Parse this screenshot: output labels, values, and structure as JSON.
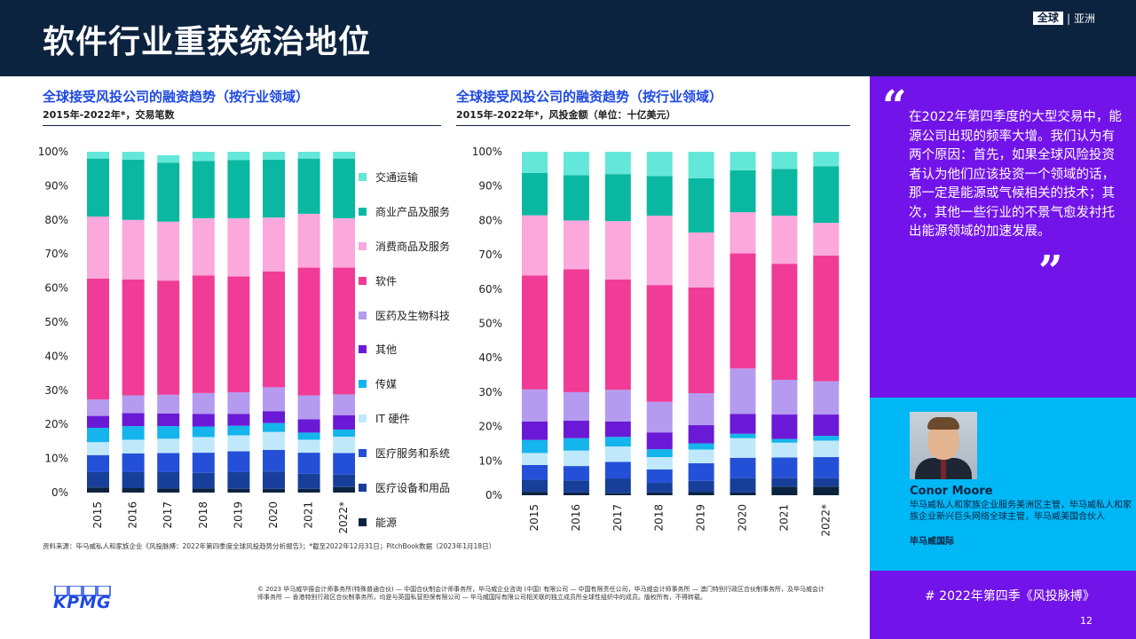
{
  "header": {
    "title": "软件行业重获统治地位",
    "brand_box": "全球",
    "brand_region": "亚洲"
  },
  "charts": {
    "left_title": "全球接受风投公司的融资趋势（按行业领域）",
    "left_subtitle": "2015年-2022年*，交易笔数",
    "right_title": "全球接受风投公司的融资趋势（按行业领域）",
    "right_subtitle": "2015年-2022年*，风投金额（单位：十亿美元）"
  },
  "legend": [
    {
      "label": "交通运输",
      "color": "#63e7d9"
    },
    {
      "label": "商业产品及服务",
      "color": "#0ab8a2"
    },
    {
      "label": "消费商品及服务",
      "color": "#fba8dc"
    },
    {
      "label": "软件",
      "color": "#f03c96"
    },
    {
      "label": "医药及生物科技",
      "color": "#b49bef"
    },
    {
      "label": "其他",
      "color": "#6a1ad6"
    },
    {
      "label": "传媒",
      "color": "#14b4ec"
    },
    {
      "label": "IT 硬件",
      "color": "#bfe9fa"
    },
    {
      "label": "医疗服务和系统",
      "color": "#2450d8"
    },
    {
      "label": "医疗设备和用品",
      "color": "#173f9a"
    },
    {
      "label": "能源",
      "color": "#0c2340"
    }
  ],
  "chart_data": [
    {
      "type": "bar",
      "stacked": true,
      "title": "全球接受风投公司的融资趋势（按行业领域）",
      "subtitle": "2015年-2022年*，交易笔数",
      "categories": [
        "2015",
        "2016",
        "2017",
        "2018",
        "2019",
        "2020",
        "2021",
        "2022*"
      ],
      "ylim": [
        0,
        100
      ],
      "y_ticks": [
        "0%",
        "10%",
        "20%",
        "30%",
        "40%",
        "50%",
        "60%",
        "70%",
        "80%",
        "90%",
        "100%"
      ],
      "legend_position": "right",
      "series": [
        {
          "name": "能源",
          "values": [
            1.5,
            1.3,
            1.2,
            1.2,
            1.1,
            1.1,
            1.1,
            1.6
          ]
        },
        {
          "name": "医疗设备和用品",
          "values": [
            4.5,
            4.7,
            4.8,
            4.6,
            4.9,
            5.1,
            4.4,
            3.7
          ]
        },
        {
          "name": "医疗服务和系统",
          "values": [
            5.0,
            5.5,
            5.6,
            5.9,
            6.1,
            6.3,
            6.2,
            6.3
          ]
        },
        {
          "name": "IT 硬件",
          "values": [
            3.8,
            4.0,
            4.2,
            4.6,
            4.7,
            5.3,
            3.8,
            4.8
          ]
        },
        {
          "name": "传媒",
          "values": [
            4.2,
            4.0,
            3.7,
            3.1,
            2.8,
            2.6,
            2.1,
            2.1
          ]
        },
        {
          "name": "其他",
          "values": [
            3.5,
            3.8,
            3.7,
            3.7,
            3.5,
            3.5,
            3.9,
            4.2
          ]
        },
        {
          "name": "医药及生物科技",
          "values": [
            4.8,
            5.2,
            5.5,
            6.1,
            6.3,
            7.0,
            7.0,
            6.1
          ]
        },
        {
          "name": "软件",
          "values": [
            35.5,
            34.0,
            33.5,
            34.5,
            34.0,
            34.0,
            37.5,
            37.2
          ]
        },
        {
          "name": "消费商品及服务",
          "values": [
            18.2,
            17.5,
            17.3,
            16.8,
            17.1,
            15.8,
            15.8,
            14.5
          ]
        },
        {
          "name": "商业产品及服务",
          "values": [
            17.0,
            17.7,
            17.3,
            16.8,
            17.1,
            17.0,
            16.2,
            17.5
          ]
        },
        {
          "name": "交通运输",
          "values": [
            2.0,
            2.3,
            2.2,
            2.7,
            2.4,
            2.3,
            2.0,
            2.0
          ]
        }
      ]
    },
    {
      "type": "bar",
      "stacked": true,
      "title": "全球接受风投公司的融资趋势（按行业领域）",
      "subtitle": "2015年-2022年*，风投金额（单位：十亿美元）",
      "categories": [
        "2015",
        "2016",
        "2017",
        "2018",
        "2019",
        "2020",
        "2021",
        "2022*"
      ],
      "ylim": [
        0,
        100
      ],
      "y_ticks": [
        "0%",
        "10%",
        "20%",
        "30%",
        "40%",
        "50%",
        "60%",
        "70%",
        "80%",
        "90%",
        "100%"
      ],
      "legend_position": "left",
      "series": [
        {
          "name": "能源",
          "values": [
            1.0,
            0.8,
            0.6,
            0.8,
            0.9,
            0.8,
            2.5,
            2.5
          ]
        },
        {
          "name": "医疗设备和用品",
          "values": [
            3.5,
            3.5,
            4.3,
            2.8,
            3.3,
            4.2,
            2.5,
            2.5
          ]
        },
        {
          "name": "医疗服务和系统",
          "values": [
            4.3,
            4.2,
            4.8,
            3.9,
            5.1,
            5.9,
            6.0,
            6.1
          ]
        },
        {
          "name": "IT 硬件",
          "values": [
            3.5,
            4.5,
            4.5,
            3.6,
            4.0,
            5.7,
            4.3,
            4.8
          ]
        },
        {
          "name": "传媒",
          "values": [
            3.8,
            3.6,
            2.8,
            2.3,
            1.8,
            1.3,
            1.1,
            1.4
          ]
        },
        {
          "name": "其他",
          "values": [
            5.4,
            5.1,
            4.5,
            4.9,
            5.3,
            5.8,
            7.1,
            6.2
          ]
        },
        {
          "name": "医药及生物科技",
          "values": [
            9.3,
            8.3,
            9.2,
            8.9,
            9.3,
            13.2,
            10.1,
            9.7
          ]
        },
        {
          "name": "软件",
          "values": [
            33.2,
            35.8,
            32.1,
            34.0,
            30.8,
            33.5,
            33.8,
            36.6
          ]
        },
        {
          "name": "消费商品及服务",
          "values": [
            17.5,
            14.2,
            17.0,
            20.2,
            16.0,
            12.0,
            14.0,
            9.5
          ]
        },
        {
          "name": "商业产品及服务",
          "values": [
            12.3,
            13.2,
            13.7,
            11.5,
            15.8,
            12.2,
            13.6,
            16.5
          ]
        },
        {
          "name": "交通运输",
          "values": [
            6.2,
            6.8,
            6.5,
            7.1,
            7.7,
            5.4,
            5.0,
            4.2
          ]
        }
      ]
    }
  ],
  "source": "资料来源：毕马威私人和家族企业《风投脉搏：2022年第四季度全球风投趋势分析报告》；*截至2022年12月31日；PitchBook数据（2023年1月18日）",
  "logo": "KPMG",
  "copyright": "© 2023 毕马威华振会计师事务所(特殊普通合伙) — 中国合伙制会计师事务所，毕马威企业咨询 (中国) 有限公司 — 中国有限责任公司，毕马威会计师事务所 — 澳门特别行政区合伙制事务所，及毕马威会计师事务所 — 香港特别行政区合伙制事务所，均是与英国私营担保有限公司 — 毕马威国际有限公司相关联的独立成员所全球性组织中的成员。版权所有，不得转载。",
  "quote": {
    "open_mark": "“",
    "text": "在2022年第四季度的大型交易中，能源公司出现的频率大增。我们认为有两个原因：首先，如果全球风险投资者认为他们应该投资一个领域的话，那一定是能源或气候相关的技术；其次，其他一些行业的不景气愈发衬托出能源领域的加速发展。",
    "close_mark": "”"
  },
  "person": {
    "name": "Conor Moore",
    "role": "毕马威私人和家族企业服务美洲区主管，毕马威私人和家族企业新兴巨头网络全球主管，毕马威美国合伙人",
    "org": "毕马威国际"
  },
  "footer": {
    "tag": "# 2022年第四季《风投脉搏》",
    "page": "12"
  }
}
